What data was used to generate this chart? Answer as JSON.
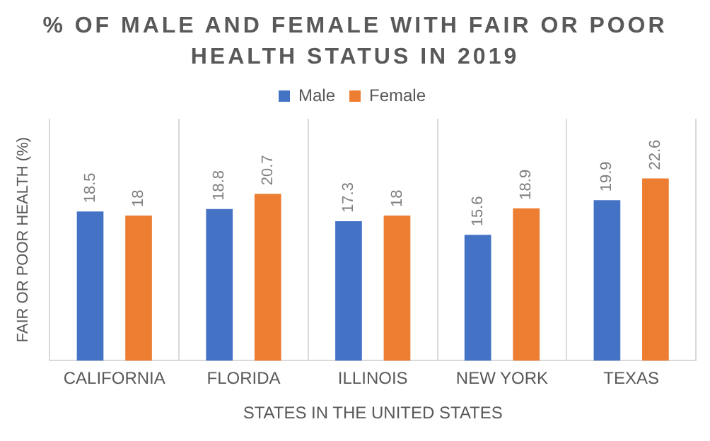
{
  "chart_data": {
    "type": "bar",
    "title": "% OF MALE AND FEMALE WITH FAIR OR POOR HEALTH STATUS IN 2019",
    "xlabel": "STATES IN THE UNITED STATES",
    "ylabel": "FAIR OR POOR HEALTH (%)",
    "categories": [
      "CALIFORNIA",
      "FLORIDA",
      "ILLINOIS",
      "NEW YORK",
      "TEXAS"
    ],
    "series": [
      {
        "name": "Male",
        "color": "#4472c4",
        "values": [
          18.5,
          18.8,
          17.3,
          15.6,
          19.9
        ]
      },
      {
        "name": "Female",
        "color": "#ed7d31",
        "values": [
          18,
          20.7,
          18,
          18.9,
          22.6
        ]
      }
    ],
    "data_labels": true,
    "legend": "top",
    "grid": "x"
  }
}
